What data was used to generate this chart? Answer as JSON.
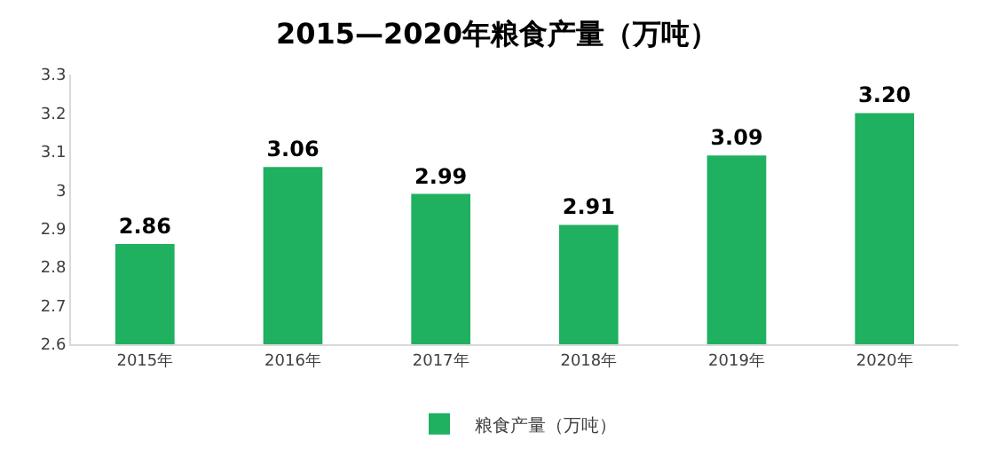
{
  "chart_data": {
    "type": "bar",
    "title": "2015—2020年粮食产量（万吨）",
    "categories": [
      "2015年",
      "2016年",
      "2017年",
      "2018年",
      "2019年",
      "2020年"
    ],
    "series": [
      {
        "name": "粮食产量（万吨）",
        "color": "#1fb060",
        "values": [
          2.86,
          3.06,
          2.99,
          2.91,
          3.09,
          3.2
        ],
        "value_labels": [
          "2.86",
          "3.06",
          "2.99",
          "2.91",
          "3.09",
          "3.20"
        ]
      }
    ],
    "ylim": [
      2.6,
      3.3
    ],
    "yticks": [
      2.6,
      2.7,
      2.8,
      2.9,
      3,
      3.1,
      3.2,
      3.3
    ],
    "legend": "bottom"
  }
}
